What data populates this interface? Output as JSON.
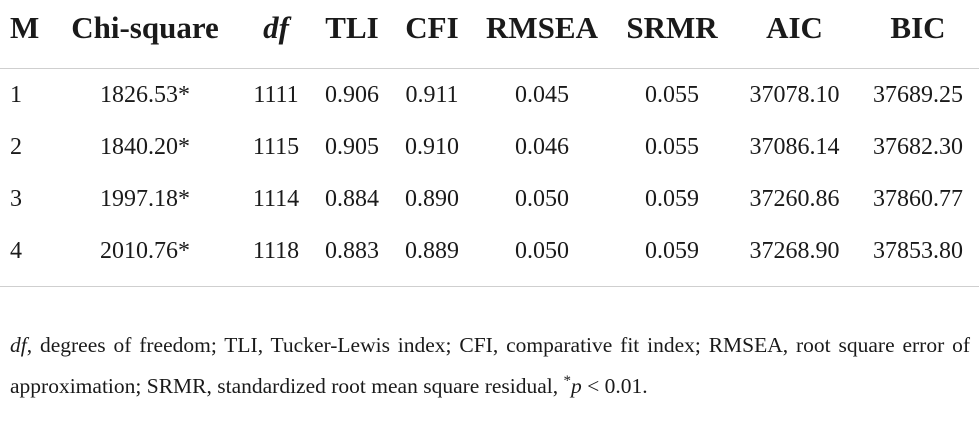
{
  "table": {
    "headers": [
      "M",
      "Chi-square",
      "df",
      "TLI",
      "CFI",
      "RMSEA",
      "SRMR",
      "AIC",
      "BIC"
    ],
    "rows": [
      [
        "1",
        "1826.53*",
        "1111",
        "0.906",
        "0.911",
        "0.045",
        "0.055",
        "37078.10",
        "37689.25"
      ],
      [
        "2",
        "1840.20*",
        "1115",
        "0.905",
        "0.910",
        "0.046",
        "0.055",
        "37086.14",
        "37682.30"
      ],
      [
        "3",
        "1997.18*",
        "1114",
        "0.884",
        "0.890",
        "0.050",
        "0.059",
        "37260.86",
        "37860.77"
      ],
      [
        "4",
        "2010.76*",
        "1118",
        "0.883",
        "0.889",
        "0.050",
        "0.059",
        "37268.90",
        "37853.80"
      ]
    ]
  },
  "footnote": {
    "df_term": "df",
    "df_def": ", degrees of freedom; TLI, Tucker-Lewis index; CFI, comparative fit index; RMSEA, root square error of approximation; SRMR, standardized root mean square residual, ",
    "p_star": "*",
    "p_term": "p",
    "p_rest": " < 0.01."
  }
}
